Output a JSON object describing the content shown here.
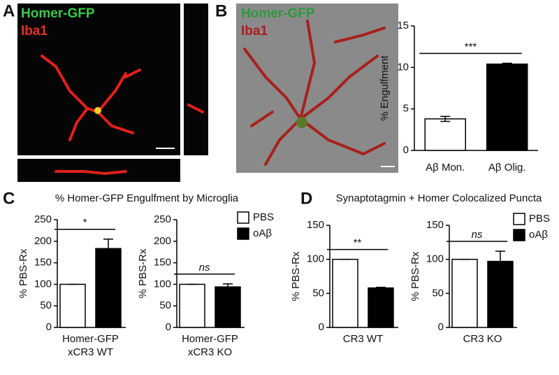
{
  "images": [
    {
      "panel": "A",
      "labels": [
        "Homer-GFP",
        "Iba1"
      ]
    },
    {
      "panel": "B",
      "labels": [
        "Homer-GFP",
        "Iba1"
      ]
    }
  ],
  "panels": [
    {
      "letter": "C",
      "title": "% Homer-GFP Engulfment by Microglia"
    },
    {
      "letter": "D",
      "title": "Synaptotagmin + Homer Colocalized Puncta"
    }
  ],
  "chart_data": [
    {
      "type": "bar",
      "categories": [
        [
          "Aβ Mon."
        ],
        [
          "Aβ Olig."
        ]
      ],
      "values": [
        3.8,
        10.4
      ],
      "errors": [
        0.3,
        0.1
      ],
      "colors": [
        "#ffffff",
        "#000000"
      ],
      "ylabel": "% Engulfment",
      "ylim": [
        0,
        15
      ],
      "yticks": [
        0,
        5,
        10,
        15
      ],
      "annotations": [
        {
          "text": "***"
        }
      ],
      "legend": false
    },
    {
      "type": "bar",
      "categories": [
        [
          "Homer-GFP",
          "xCR3 WT"
        ]
      ],
      "series": [
        {
          "name": "PBS",
          "color": "#ffffff",
          "values": [
            100
          ],
          "errors": [
            0
          ]
        },
        {
          "name": "oAβ",
          "color": "#000000",
          "values": [
            183
          ],
          "errors": [
            22
          ]
        }
      ],
      "ylabel": "% PBS-Rx",
      "ylim": [
        0,
        250
      ],
      "yticks": [
        0,
        50,
        100,
        150,
        200,
        250
      ],
      "annotations": [
        {
          "text": "*"
        }
      ],
      "legend": false
    },
    {
      "type": "bar",
      "categories": [
        [
          "Homer-GFP",
          "xCR3 KO"
        ]
      ],
      "series": [
        {
          "name": "PBS",
          "color": "#ffffff",
          "values": [
            100
          ],
          "errors": [
            0
          ]
        },
        {
          "name": "oAβ",
          "color": "#000000",
          "values": [
            94
          ],
          "errors": [
            7
          ]
        }
      ],
      "ylabel": "% PBS-Rx",
      "ylim": [
        0,
        250
      ],
      "yticks": [
        0,
        50,
        100,
        150,
        200,
        250
      ],
      "annotations": [
        {
          "text": "ns"
        }
      ],
      "legend": true
    },
    {
      "type": "bar",
      "categories": [
        [
          "CR3 WT"
        ]
      ],
      "series": [
        {
          "name": "PBS",
          "color": "#ffffff",
          "values": [
            100
          ],
          "errors": [
            0
          ]
        },
        {
          "name": "oAβ",
          "color": "#000000",
          "values": [
            58
          ],
          "errors": [
            1
          ]
        }
      ],
      "ylabel": "% PBS-Rx",
      "ylim": [
        0,
        150
      ],
      "yticks": [
        0,
        50,
        100,
        150
      ],
      "annotations": [
        {
          "text": "**"
        }
      ],
      "legend": false
    },
    {
      "type": "bar",
      "categories": [
        [
          "CR3 KO"
        ]
      ],
      "series": [
        {
          "name": "PBS",
          "color": "#ffffff",
          "values": [
            100
          ],
          "errors": [
            0
          ]
        },
        {
          "name": "oAβ",
          "color": "#000000",
          "values": [
            97
          ],
          "errors": [
            15
          ]
        }
      ],
      "ylabel": "% PBS-Rx",
      "ylim": [
        0,
        150
      ],
      "yticks": [
        0,
        50,
        100,
        150
      ],
      "annotations": [
        {
          "text": "ns"
        }
      ],
      "legend": true
    }
  ]
}
